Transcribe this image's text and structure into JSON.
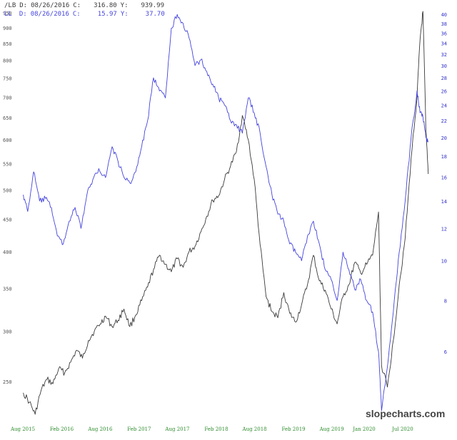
{
  "legend": {
    "series1": {
      "symbol": "/LB",
      "date_label": "D:",
      "date": "08/26/2016",
      "c_label": "C:",
      "c_value": "316.80",
      "y_label": "Y:",
      "y_value": "939.99"
    },
    "series2": {
      "symbol": "LL",
      "date_label": "D:",
      "date": "08/26/2016",
      "c_label": "C:",
      "c_value": "15.97",
      "y_label": "Y:",
      "y_value": "37.70"
    }
  },
  "watermark": "slopecharts.com",
  "colors": {
    "series1": "#3a3a3a",
    "series2": "#4444dd",
    "x_ticks": "#2a8a2a",
    "right_ticks": "#3333cc",
    "left_ticks": "#555555"
  },
  "chart_data": {
    "type": "line",
    "title": "",
    "x_tick_labels": [
      "Aug 2015",
      "Feb 2016",
      "Aug 2016",
      "Feb 2017",
      "Aug 2017",
      "Feb 2018",
      "Aug 2018",
      "Feb 2019",
      "Aug 2019",
      "Jan 2020",
      "Jul 2020"
    ],
    "x_range": [
      "2015-08",
      "2020-10"
    ],
    "left_axis": {
      "scale": "log",
      "range": [
        218,
        960
      ],
      "ticks": [
        250,
        300,
        350,
        400,
        450,
        500,
        550,
        600,
        650,
        700,
        750,
        800,
        850,
        900,
        950
      ]
    },
    "right_axis": {
      "scale": "log",
      "range": [
        4.1,
        41
      ],
      "ticks": [
        6,
        8,
        10,
        12,
        14,
        16,
        18,
        20,
        22,
        24,
        26,
        28,
        30,
        32,
        34,
        36,
        38,
        40
      ]
    },
    "series": [
      {
        "name": "/LB",
        "axis": "left",
        "points": [
          [
            "2015-08-03",
            240
          ],
          [
            "2015-09-01",
            232
          ],
          [
            "2015-09-28",
            222
          ],
          [
            "2015-10-26",
            242
          ],
          [
            "2015-11-23",
            252
          ],
          [
            "2015-12-21",
            248
          ],
          [
            "2016-01-18",
            262
          ],
          [
            "2016-02-15",
            258
          ],
          [
            "2016-03-14",
            268
          ],
          [
            "2016-04-11",
            280
          ],
          [
            "2016-05-09",
            272
          ],
          [
            "2016-06-06",
            290
          ],
          [
            "2016-07-04",
            300
          ],
          [
            "2016-08-01",
            308
          ],
          [
            "2016-08-26",
            316.8
          ],
          [
            "2016-09-26",
            305
          ],
          [
            "2016-10-24",
            312
          ],
          [
            "2016-11-21",
            325
          ],
          [
            "2016-12-19",
            305
          ],
          [
            "2017-01-16",
            318
          ],
          [
            "2017-02-13",
            335
          ],
          [
            "2017-03-13",
            352
          ],
          [
            "2017-04-10",
            375
          ],
          [
            "2017-05-08",
            395
          ],
          [
            "2017-06-05",
            382
          ],
          [
            "2017-07-03",
            372
          ],
          [
            "2017-07-31",
            390
          ],
          [
            "2017-08-28",
            378
          ],
          [
            "2017-09-25",
            400
          ],
          [
            "2017-10-23",
            408
          ],
          [
            "2017-11-20",
            430
          ],
          [
            "2017-12-18",
            455
          ],
          [
            "2018-01-15",
            482
          ],
          [
            "2018-02-12",
            490
          ],
          [
            "2018-03-12",
            520
          ],
          [
            "2018-04-09",
            545
          ],
          [
            "2018-05-07",
            575
          ],
          [
            "2018-06-04",
            655
          ],
          [
            "2018-07-02",
            600
          ],
          [
            "2018-07-30",
            520
          ],
          [
            "2018-08-27",
            410
          ],
          [
            "2018-09-24",
            340
          ],
          [
            "2018-10-22",
            322
          ],
          [
            "2018-11-19",
            315
          ],
          [
            "2018-12-17",
            345
          ],
          [
            "2019-01-14",
            320
          ],
          [
            "2019-02-11",
            310
          ],
          [
            "2019-03-11",
            330
          ],
          [
            "2019-04-08",
            355
          ],
          [
            "2019-05-06",
            395
          ],
          [
            "2019-06-03",
            360
          ],
          [
            "2019-07-01",
            348
          ],
          [
            "2019-07-29",
            325
          ],
          [
            "2019-08-26",
            308
          ],
          [
            "2019-09-23",
            340
          ],
          [
            "2019-10-21",
            355
          ],
          [
            "2019-11-18",
            385
          ],
          [
            "2019-12-16",
            370
          ],
          [
            "2020-01-13",
            382
          ],
          [
            "2020-02-10",
            395
          ],
          [
            "2020-03-09",
            462
          ],
          [
            "2020-03-23",
            265
          ],
          [
            "2020-04-20",
            245
          ],
          [
            "2020-05-18",
            290
          ],
          [
            "2020-06-15",
            355
          ],
          [
            "2020-07-13",
            420
          ],
          [
            "2020-08-10",
            560
          ],
          [
            "2020-09-07",
            700
          ],
          [
            "2020-09-21",
            860
          ],
          [
            "2020-10-05",
            955
          ],
          [
            "2020-10-19",
            620
          ],
          [
            "2020-10-30",
            530
          ]
        ]
      },
      {
        "name": "LL",
        "axis": "right",
        "points": [
          [
            "2015-08-03",
            14.5
          ],
          [
            "2015-08-24",
            13.2
          ],
          [
            "2015-09-21",
            16.5
          ],
          [
            "2015-10-19",
            14.0
          ],
          [
            "2015-11-16",
            14.2
          ],
          [
            "2015-12-14",
            13.5
          ],
          [
            "2016-01-11",
            11.5
          ],
          [
            "2016-02-08",
            11.0
          ],
          [
            "2016-03-07",
            12.5
          ],
          [
            "2016-04-04",
            13.5
          ],
          [
            "2016-05-02",
            12.0
          ],
          [
            "2016-05-30",
            14.5
          ],
          [
            "2016-06-27",
            15.8
          ],
          [
            "2016-07-25",
            16.8
          ],
          [
            "2016-08-26",
            15.97
          ],
          [
            "2016-09-26",
            19.0
          ],
          [
            "2016-10-24",
            17.5
          ],
          [
            "2016-11-21",
            16.0
          ],
          [
            "2016-12-19",
            15.5
          ],
          [
            "2017-01-16",
            16.5
          ],
          [
            "2017-02-13",
            19.0
          ],
          [
            "2017-03-13",
            22.0
          ],
          [
            "2017-04-10",
            28.0
          ],
          [
            "2017-05-08",
            26.0
          ],
          [
            "2017-06-05",
            25.0
          ],
          [
            "2017-07-03",
            37.0
          ],
          [
            "2017-07-31",
            40.0
          ],
          [
            "2017-08-28",
            38.0
          ],
          [
            "2017-09-25",
            35.0
          ],
          [
            "2017-10-23",
            30.0
          ],
          [
            "2017-11-20",
            31.0
          ],
          [
            "2017-12-18",
            29.0
          ],
          [
            "2018-01-15",
            27.0
          ],
          [
            "2018-02-12",
            25.0
          ],
          [
            "2018-03-12",
            24.0
          ],
          [
            "2018-04-09",
            22.0
          ],
          [
            "2018-05-07",
            21.5
          ],
          [
            "2018-06-04",
            20.5
          ],
          [
            "2018-07-02",
            25.0
          ],
          [
            "2018-07-30",
            23.0
          ],
          [
            "2018-08-27",
            20.5
          ],
          [
            "2018-09-24",
            17.0
          ],
          [
            "2018-10-22",
            14.5
          ],
          [
            "2018-11-19",
            13.0
          ],
          [
            "2018-12-17",
            12.5
          ],
          [
            "2019-01-14",
            11.0
          ],
          [
            "2019-02-11",
            10.5
          ],
          [
            "2019-03-11",
            10.0
          ],
          [
            "2019-04-08",
            11.5
          ],
          [
            "2019-05-06",
            12.5
          ],
          [
            "2019-06-03",
            11.0
          ],
          [
            "2019-07-01",
            9.5
          ],
          [
            "2019-07-29",
            9.0
          ],
          [
            "2019-08-26",
            8.0
          ],
          [
            "2019-09-23",
            10.5
          ],
          [
            "2019-10-21",
            9.5
          ],
          [
            "2019-11-18",
            8.5
          ],
          [
            "2019-12-16",
            9.0
          ],
          [
            "2020-01-13",
            8.0
          ],
          [
            "2020-02-10",
            7.5
          ],
          [
            "2020-03-09",
            6.0
          ],
          [
            "2020-03-23",
            4.3
          ],
          [
            "2020-04-20",
            5.5
          ],
          [
            "2020-05-18",
            7.5
          ],
          [
            "2020-06-15",
            10.5
          ],
          [
            "2020-07-13",
            14.0
          ],
          [
            "2020-08-10",
            20.0
          ],
          [
            "2020-09-07",
            26.0
          ],
          [
            "2020-09-21",
            23.0
          ],
          [
            "2020-10-05",
            22.5
          ],
          [
            "2020-10-19",
            20.0
          ],
          [
            "2020-10-30",
            19.5
          ]
        ]
      }
    ],
    "grid": false,
    "legend_position": "top-left"
  }
}
